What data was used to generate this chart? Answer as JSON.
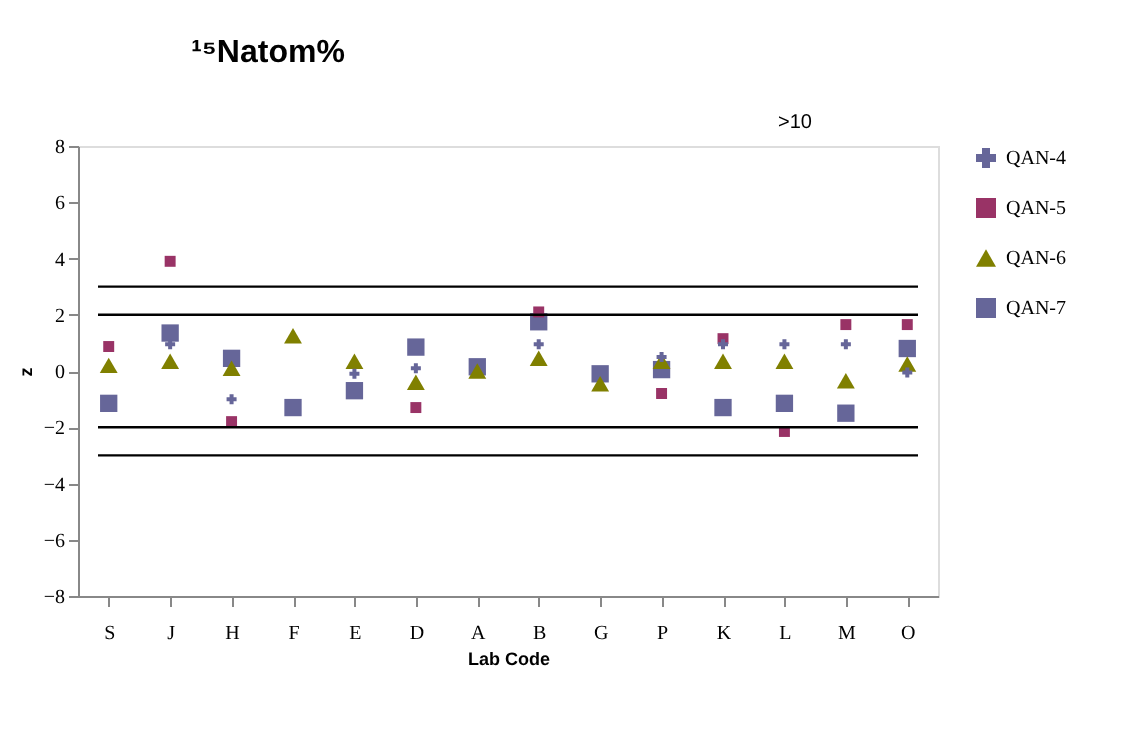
{
  "chart_data": {
    "type": "scatter",
    "title": "¹⁵Natom%",
    "xlabel": "Lab Code",
    "ylabel": "z",
    "categories": [
      "S",
      "J",
      "H",
      "F",
      "E",
      "D",
      "A",
      "B",
      "G",
      "P",
      "K",
      "L",
      "M",
      "O"
    ],
    "series": [
      {
        "name": "QAN-4",
        "color": "#666699",
        "marker": "cross",
        "values": [
          null,
          0.95,
          -1.0,
          null,
          -0.1,
          0.1,
          null,
          0.95,
          null,
          0.5,
          0.95,
          0.95,
          0.95,
          -0.05
        ]
      },
      {
        "name": "QAN-5",
        "color": "#993366",
        "marker": "square",
        "values": [
          0.87,
          3.9,
          -1.8,
          null,
          null,
          -1.3,
          null,
          2.1,
          null,
          -0.8,
          1.15,
          -2.15,
          1.65,
          1.65
        ]
      },
      {
        "name": "QAN-6",
        "color": "#808000",
        "marker": "triangle",
        "values": [
          0.2,
          0.35,
          0.1,
          1.25,
          0.35,
          -0.4,
          0.0,
          0.45,
          -0.45,
          0.35,
          0.35,
          0.35,
          -0.35,
          0.25
        ]
      },
      {
        "name": "QAN-7",
        "color": "#666699",
        "marker": "square",
        "values": [
          -1.15,
          1.35,
          0.45,
          -1.3,
          -0.7,
          0.85,
          0.15,
          1.75,
          -0.1,
          0.05,
          -1.3,
          -1.15,
          -1.5,
          0.8
        ]
      }
    ],
    "ylim": [
      -8,
      8
    ],
    "yticks": [
      -8,
      -6,
      -4,
      -2,
      0,
      2,
      4,
      6,
      8
    ],
    "grid": false,
    "legend": "right",
    "ref_lines": [
      {
        "axis": "y",
        "value": 3,
        "color": "#000000"
      },
      {
        "axis": "y",
        "value": 2,
        "color": "#000000"
      },
      {
        "axis": "y",
        "value": -2,
        "color": "#000000"
      },
      {
        "axis": "y",
        "value": -3,
        "color": "#000000"
      }
    ],
    "annotations": [
      ">10"
    ]
  }
}
